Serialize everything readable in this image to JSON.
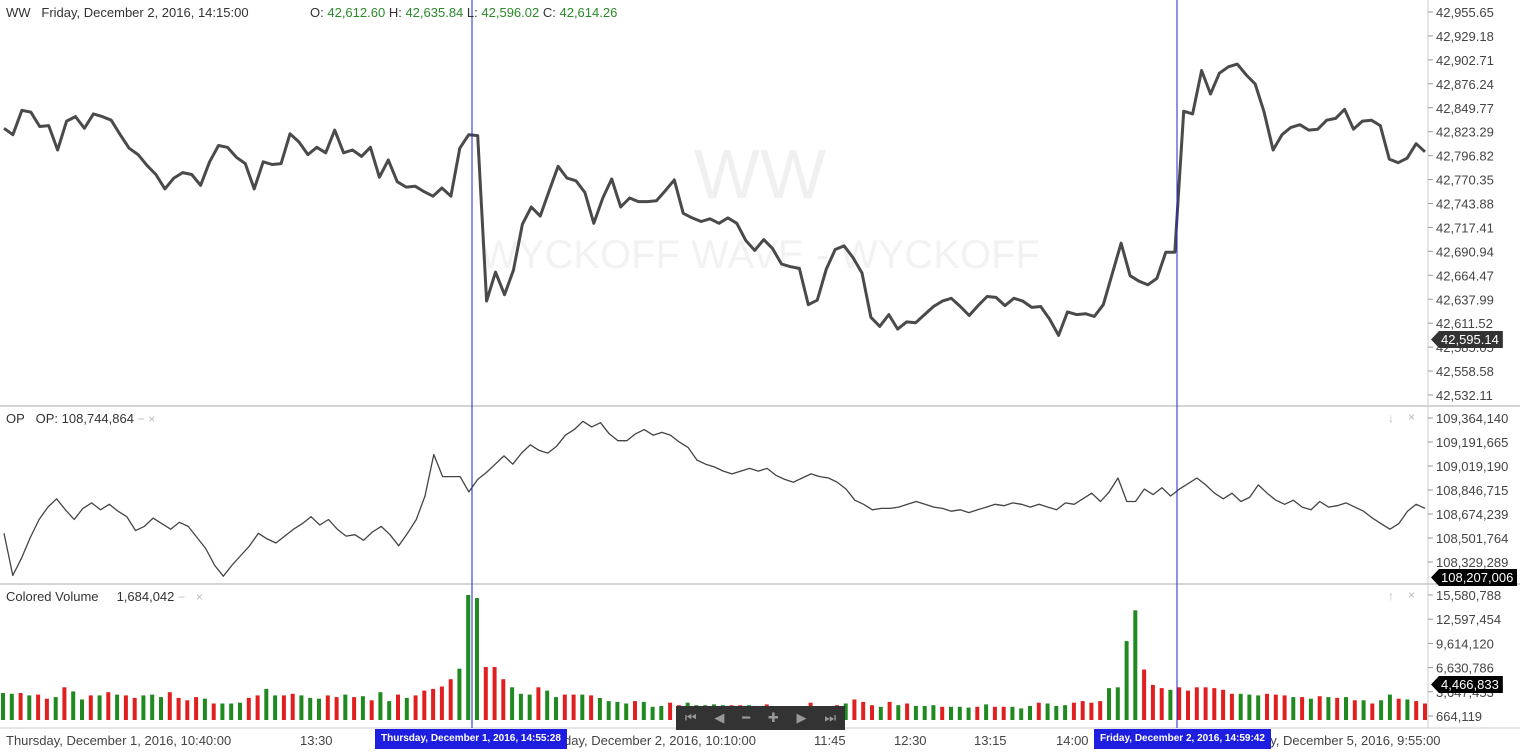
{
  "main": {
    "symbol": "WW",
    "datetime": "Friday, December 2, 2016, 14:15:00",
    "ohlc": {
      "o_label": "O:",
      "o": "42,612.60",
      "h_label": "H:",
      "h": "42,635.84",
      "l_label": "L:",
      "l": "42,596.02",
      "c_label": "C:",
      "c": "42,614.26"
    },
    "watermark": "WW",
    "watermark_sub": "WYCKOFF WAVE - WYCKOFF",
    "current_value": "42,595.14",
    "axis_labels": [
      "42,955.65",
      "42,929.18",
      "42,902.71",
      "42,876.24",
      "42,849.77",
      "42,823.29",
      "42,796.82",
      "42,770.35",
      "42,743.88",
      "42,717.41",
      "42,690.94",
      "42,664.47",
      "42,637.99",
      "42,611.52",
      "42,585.05",
      "42,558.58",
      "42,532.11"
    ]
  },
  "op": {
    "name": "OP",
    "label": "OP:",
    "value": "108,744,864",
    "current_value": "108,207,006",
    "axis_labels": [
      "109,364,140",
      "109,191,665",
      "109,019,190",
      "108,846,715",
      "108,674,239",
      "108,501,764",
      "108,329,289"
    ]
  },
  "volume": {
    "name": "Colored Volume",
    "value": "1,684,042",
    "current_value": "4,466,833",
    "axis_labels": [
      "15,580,788",
      "12,597,454",
      "9,614,120",
      "6,630,786",
      "3,647,453",
      "664,119"
    ]
  },
  "x_axis": {
    "labels": [
      "Thursday, December 1, 2016, 10:40:00",
      "13:30",
      "day, December 2, 2016, 10:10:00",
      "11:45",
      "12:30",
      "13:15",
      "14:00",
      "ay, December 5, 2016, 9:55:00"
    ],
    "crosshair_labels": [
      "Thursday, December 1, 2016, 14:55:28",
      "Friday, December 2, 2016, 14:59:42"
    ]
  },
  "controls": {
    "minimize": "−",
    "close": "×",
    "up": "↑",
    "down": "↓"
  },
  "navigator": [
    "first-icon",
    "prev-icon",
    "zoom-out-icon",
    "zoom-in-icon",
    "next-icon",
    "last-icon"
  ],
  "chart_data": [
    {
      "type": "line",
      "title": "WW",
      "ylim": [
        42532.11,
        42955.65
      ],
      "color": "#4a4a4a",
      "values": [
        42827,
        42820,
        42847,
        42845,
        42829,
        42830,
        42803,
        42835,
        42840,
        42827,
        42843,
        42840,
        42836,
        42820,
        42805,
        42798,
        42786,
        42776,
        42760,
        42772,
        42778,
        42776,
        42764,
        42790,
        42808,
        42806,
        42795,
        42788,
        42760,
        42790,
        42787,
        42788,
        42821,
        42812,
        42798,
        42806,
        42800,
        42825,
        42800,
        42803,
        42796,
        42806,
        42773,
        42792,
        42768,
        42762,
        42763,
        42757,
        42752,
        42761,
        42752,
        42805,
        42820,
        42819,
        42636,
        42668,
        42643,
        42670,
        42721,
        42740,
        42730,
        42758,
        42785,
        42772,
        42769,
        42756,
        42722,
        42750,
        42771,
        42740,
        42750,
        42746,
        42746,
        42747,
        42758,
        42770,
        42733,
        42728,
        42724,
        42727,
        42722,
        42728,
        42722,
        42703,
        42692,
        42704,
        42694,
        42677,
        42674,
        42672,
        42632,
        42637,
        42671,
        42693,
        42697,
        42684,
        42667,
        42618,
        42608,
        42621,
        42605,
        42613,
        42612,
        42621,
        42630,
        42636,
        42639,
        42630,
        42620,
        42631,
        42641,
        42640,
        42631,
        42639,
        42636,
        42629,
        42630,
        42616,
        42598,
        42624,
        42621,
        42622,
        42619,
        42632,
        42666,
        42700,
        42664,
        42658,
        42654,
        42661,
        42690,
        42690,
        42846,
        42843,
        42891,
        42865,
        42888,
        42895,
        42898,
        42886,
        42876,
        42845,
        42803,
        42820,
        42828,
        42831,
        42825,
        42826,
        42836,
        42838,
        42848,
        42826,
        42835,
        42836,
        42830,
        42793,
        42789,
        42794,
        42810,
        42801
      ]
    },
    {
      "type": "line",
      "title": "OP",
      "ylim": [
        108207006,
        109364140
      ],
      "color": "#444444",
      "values": [
        108530000,
        108225000,
        108350000,
        108500000,
        108630000,
        108720000,
        108780000,
        108700000,
        108630000,
        108710000,
        108750000,
        108700000,
        108740000,
        108690000,
        108650000,
        108550000,
        108580000,
        108640000,
        108600000,
        108560000,
        108610000,
        108580000,
        108500000,
        108420000,
        108300000,
        108220000,
        108300000,
        108370000,
        108440000,
        108530000,
        108490000,
        108460000,
        108510000,
        108560000,
        108600000,
        108650000,
        108590000,
        108630000,
        108560000,
        108510000,
        108520000,
        108480000,
        108540000,
        108580000,
        108520000,
        108440000,
        108530000,
        108630000,
        108800000,
        109100000,
        108940000,
        108940000,
        108940000,
        108830000,
        108920000,
        108970000,
        109030000,
        109090000,
        109030000,
        109110000,
        109170000,
        109130000,
        109110000,
        109160000,
        109240000,
        109280000,
        109340000,
        109300000,
        109330000,
        109250000,
        109200000,
        109200000,
        109250000,
        109280000,
        109240000,
        109260000,
        109240000,
        109190000,
        109150000,
        109060000,
        109030000,
        109010000,
        108980000,
        108960000,
        108980000,
        109000000,
        108980000,
        109000000,
        108950000,
        108920000,
        108900000,
        108930000,
        108960000,
        108940000,
        108930000,
        108900000,
        108850000,
        108770000,
        108740000,
        108700000,
        108710000,
        108710000,
        108720000,
        108740000,
        108760000,
        108740000,
        108720000,
        108710000,
        108690000,
        108700000,
        108680000,
        108700000,
        108720000,
        108740000,
        108730000,
        108750000,
        108740000,
        108720000,
        108740000,
        108720000,
        108700000,
        108750000,
        108740000,
        108780000,
        108820000,
        108760000,
        108830000,
        108930000,
        108760000,
        108760000,
        108850000,
        108810000,
        108860000,
        108800000,
        108850000,
        108890000,
        108930000,
        108880000,
        108820000,
        108780000,
        108820000,
        108760000,
        108790000,
        108880000,
        108820000,
        108770000,
        108740000,
        108770000,
        108720000,
        108700000,
        108760000,
        108720000,
        108730000,
        108750000,
        108720000,
        108690000,
        108640000,
        108600000,
        108560000,
        108600000,
        108690000,
        108740000,
        108710000
      ]
    },
    {
      "type": "bar",
      "title": "Colored Volume",
      "ylim": [
        664119,
        15580788
      ],
      "colors": {
        "up": "#1f8a1f",
        "down": "#e02020"
      },
      "values": [
        3500000,
        3400000,
        3500000,
        3200000,
        3300000,
        2800000,
        3000000,
        4200000,
        3700000,
        2700000,
        3200000,
        3200000,
        3600000,
        3300000,
        3200000,
        2900000,
        3200000,
        3300000,
        3000000,
        3600000,
        2900000,
        2600000,
        3000000,
        2800000,
        2200000,
        2200000,
        2200000,
        2300000,
        2900000,
        3200000,
        4000000,
        3200000,
        3200000,
        3400000,
        3200000,
        2900000,
        2800000,
        3200000,
        3000000,
        3300000,
        3000000,
        3100000,
        2600000,
        3600000,
        2500000,
        3300000,
        2900000,
        3200000,
        3800000,
        4000000,
        4300000,
        5200000,
        6500000,
        15580788,
        15200000,
        6700000,
        6700000,
        5200000,
        4200000,
        3400000,
        3300000,
        4200000,
        3800000,
        3000000,
        3300000,
        3300000,
        3300000,
        3200000,
        2900000,
        2500000,
        2400000,
        2200000,
        2500000,
        2400000,
        1800000,
        1900000,
        2300000,
        2000000,
        2300000,
        2000000,
        2000000,
        2100000,
        2000000,
        2000000,
        2000000,
        2000000,
        1600000,
        2100000,
        1900000,
        1900000,
        1800000,
        1700000,
        2300000,
        1900000,
        1800000,
        2000000,
        2200000,
        2700000,
        2400000,
        2000000,
        1800000,
        2400000,
        2000000,
        2200000,
        1900000,
        1900000,
        2000000,
        1800000,
        1800000,
        1800000,
        1700000,
        1800000,
        2100000,
        1800000,
        1800000,
        1800000,
        1600000,
        1900000,
        2300000,
        2200000,
        1900000,
        2000000,
        2300000,
        2500000,
        2300000,
        2500000,
        4100000,
        4200000,
        9900000,
        13700000,
        6400000,
        4500000,
        4100000,
        3900000,
        4200000,
        3800000,
        4200000,
        4200000,
        4100000,
        3900000,
        3400000,
        3400000,
        3300000,
        3200000,
        3400000,
        3300000,
        3200000,
        3000000,
        3000000,
        2800000,
        3100000,
        3000000,
        2900000,
        3000000,
        2600000,
        2600000,
        2200000,
        2600000,
        3300000,
        2800000,
        2700000,
        2500000,
        2200000
      ],
      "up": [
        1,
        1,
        0,
        1,
        0,
        0,
        1,
        0,
        1,
        1,
        0,
        1,
        0,
        1,
        0,
        0,
        1,
        1,
        1,
        0,
        0,
        0,
        0,
        1,
        0,
        1,
        1,
        1,
        0,
        0,
        1,
        1,
        0,
        0,
        1,
        1,
        1,
        0,
        0,
        1,
        0,
        1,
        0,
        1,
        1,
        0,
        1,
        0,
        0,
        0,
        0,
        0,
        1,
        1,
        1,
        0,
        0,
        0,
        1,
        1,
        1,
        0,
        1,
        1,
        0,
        0,
        1,
        0,
        1,
        1,
        1,
        1,
        0,
        1,
        1,
        1,
        0,
        0,
        1,
        1,
        1,
        1,
        1,
        0,
        0,
        1,
        1,
        0,
        1,
        1,
        1,
        1,
        0,
        0,
        1,
        0,
        1,
        0,
        0,
        0,
        1,
        0,
        1,
        0,
        1,
        1,
        1,
        0,
        1,
        1,
        1,
        0,
        1,
        0,
        0,
        1,
        1,
        1,
        0,
        1,
        1,
        1,
        0,
        0,
        0,
        0,
        1,
        1,
        1,
        1,
        0,
        0,
        0,
        1,
        0,
        0,
        0,
        0,
        0,
        0,
        0,
        1,
        1,
        1,
        0,
        0,
        0,
        1,
        0,
        1,
        0,
        1,
        0,
        1,
        0,
        1,
        0,
        1,
        1,
        0,
        1,
        0,
        0,
        1,
        1
      ]
    }
  ]
}
